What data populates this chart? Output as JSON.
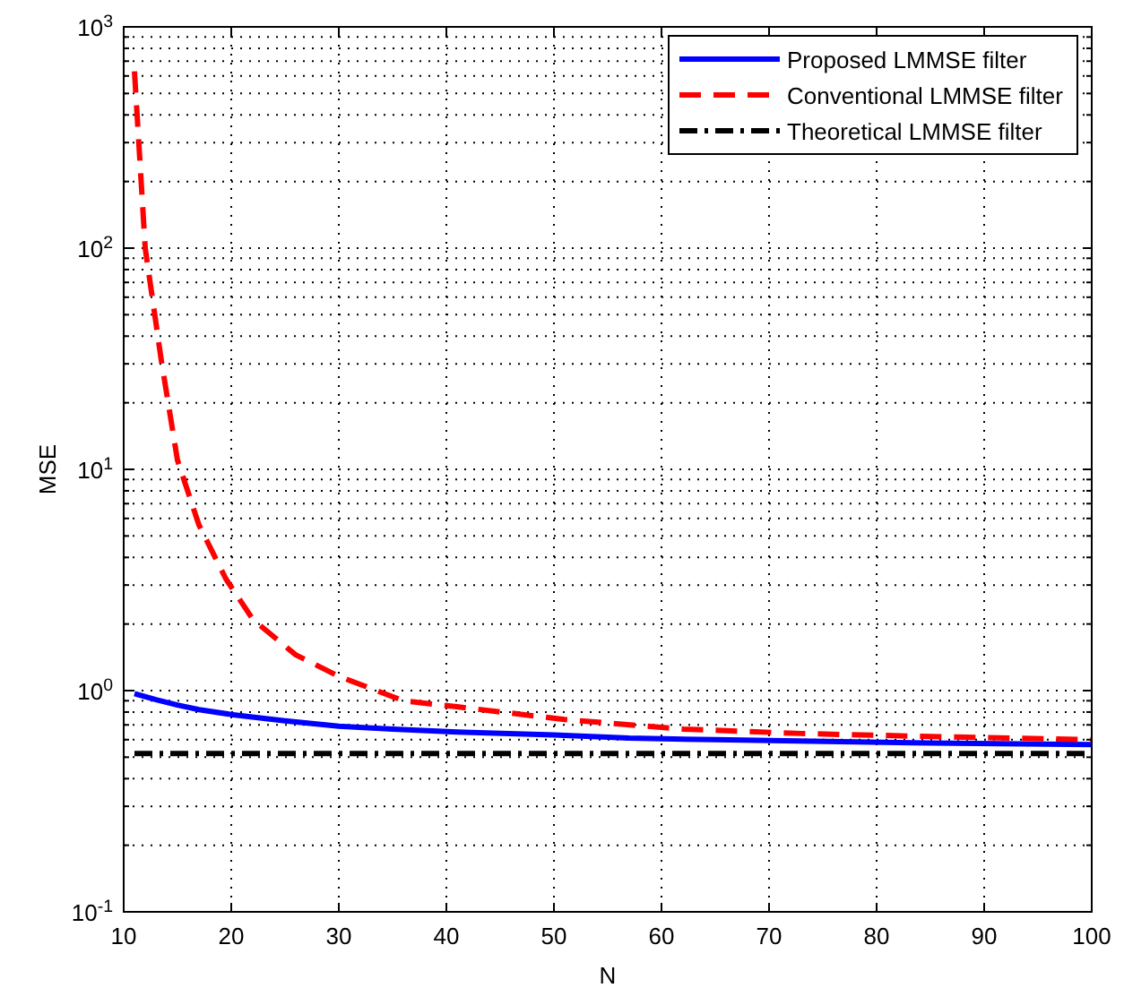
{
  "chart_data": {
    "type": "line",
    "xlabel": "N",
    "ylabel": "MSE",
    "log": "y",
    "grid": true,
    "legend": "top right",
    "xlim": [
      10,
      100
    ],
    "xticks": [
      10,
      20,
      30,
      40,
      50,
      60,
      70,
      80,
      90,
      100
    ],
    "ylim": [
      0.1,
      1000
    ],
    "yticks": [
      {
        "value": 0.1,
        "label": "10$^{-1}$"
      },
      {
        "value": 1,
        "label": "10$^{0}$"
      },
      {
        "value": 10,
        "label": "10$^{1}$"
      },
      {
        "value": 100,
        "label": "10$^{2}$"
      },
      {
        "value": 1000,
        "label": "10$^{3}$"
      }
    ],
    "series": [
      {
        "name": "Proposed LMMSE filter",
        "color": "#0000ff",
        "line_style": "solid",
        "x": [
          11,
          13,
          15,
          17,
          20,
          25,
          30,
          35,
          41,
          50,
          57,
          65,
          74,
          85,
          100
        ],
        "values": [
          0.97,
          0.91,
          0.86,
          0.82,
          0.78,
          0.73,
          0.69,
          0.67,
          0.65,
          0.63,
          0.61,
          0.6,
          0.59,
          0.58,
          0.57
        ]
      },
      {
        "name": "Conventional LMMSE filter",
        "color": "#ff0000",
        "line_style": "dashed",
        "x": [
          11,
          12,
          13.5,
          15,
          17,
          19.5,
          22,
          26,
          30,
          36,
          41,
          51,
          62,
          73,
          85,
          100
        ],
        "values": [
          630,
          100,
          31,
          11,
          5.6,
          3.2,
          2.1,
          1.45,
          1.16,
          0.9,
          0.845,
          0.74,
          0.67,
          0.64,
          0.62,
          0.6
        ]
      },
      {
        "name": "Theoretical LMMSE filter",
        "color": "#000000",
        "line_style": "dashdot",
        "x": [
          11,
          100
        ],
        "values": [
          0.52,
          0.52
        ]
      }
    ]
  }
}
